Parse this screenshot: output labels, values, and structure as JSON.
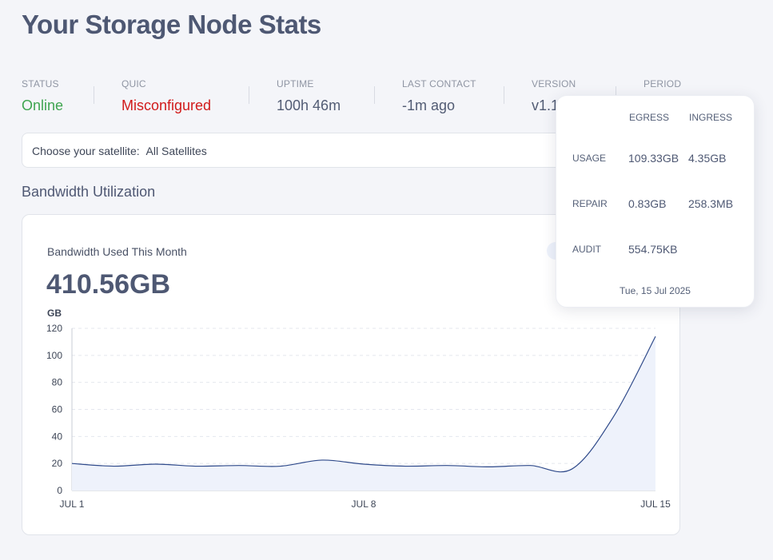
{
  "page": {
    "title": "Your Storage Node Stats"
  },
  "stats": [
    {
      "label": "STATUS",
      "value": "Online"
    },
    {
      "label": "QUIC",
      "value": "Misconfigured"
    },
    {
      "label": "UPTIME",
      "value": "100h 46m"
    },
    {
      "label": "LAST CONTACT",
      "value": "-1m ago"
    },
    {
      "label": "VERSION",
      "value": "v1.1"
    },
    {
      "label": "PERIOD",
      "value": ""
    }
  ],
  "satellite": {
    "label": "Choose your satellite:",
    "value": "All Satellites"
  },
  "bandwidth": {
    "section_title": "Bandwidth Utilization",
    "card_title": "Bandwidth Used This Month",
    "total": "410.56GB"
  },
  "chart_data": {
    "type": "area",
    "title": "",
    "xlabel": "",
    "ylabel": "GB",
    "ylim": [
      0,
      120
    ],
    "yticks": [
      "0",
      "20",
      "40",
      "60",
      "80",
      "100",
      "120"
    ],
    "xtick_labels": [
      "JUL 1",
      "JUL 8",
      "JUL 15"
    ],
    "grid": true,
    "line_color": "#2f4a8a",
    "fill_color": "#eef2fb",
    "x": [
      1,
      2,
      3,
      4,
      5,
      6,
      7,
      8,
      9,
      10,
      11,
      12,
      13,
      14,
      15
    ],
    "series": [
      {
        "values": [
          20,
          18,
          19.5,
          18,
          18.5,
          18,
          22.5,
          19.5,
          18,
          18.5,
          17.5,
          18.5,
          16,
          55,
          114
        ]
      }
    ]
  },
  "tooltip": {
    "headers": {
      "egress": "EGRESS",
      "ingress": "INGRESS"
    },
    "rows": [
      {
        "label": "USAGE",
        "egress": "109.33GB",
        "ingress": "4.35GB"
      },
      {
        "label": "REPAIR",
        "egress": "0.83GB",
        "ingress": "258.3MB"
      },
      {
        "label": "AUDIT",
        "egress": "554.75KB",
        "ingress": ""
      }
    ],
    "date": "Tue, 15 Jul 2025"
  }
}
